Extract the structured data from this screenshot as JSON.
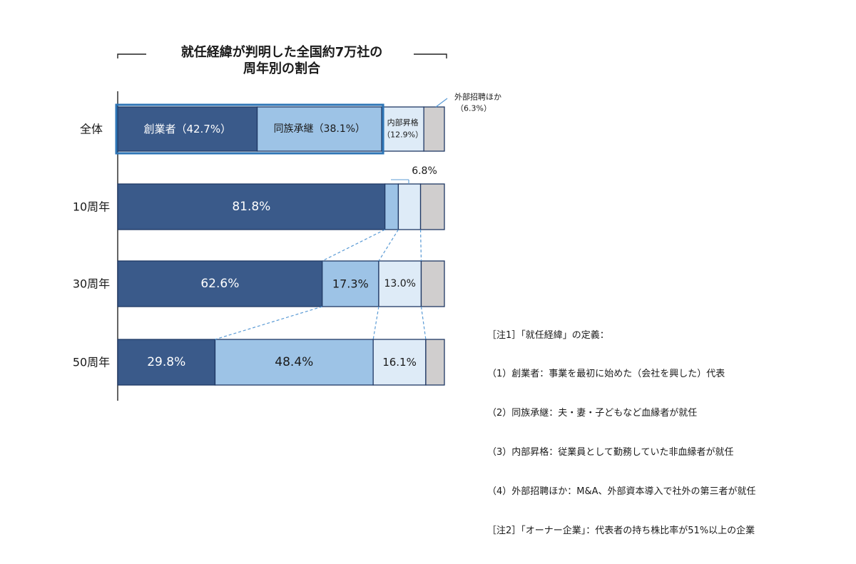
{
  "chart_data": {
    "type": "bar",
    "orientation": "horizontal",
    "stacked": true,
    "normalized": true,
    "title": "就任経緯が判明した全国約7万社の",
    "subtitle": "周年別の割合",
    "categories": [
      "全体",
      "10周年",
      "30周年",
      "50周年"
    ],
    "series": [
      {
        "name": "創業者",
        "color": "#3a5a8a",
        "values": [
          42.7,
          81.8,
          62.6,
          29.8
        ]
      },
      {
        "name": "同族承継",
        "color": "#9dc3e6",
        "values": [
          38.1,
          4.1,
          17.3,
          48.4
        ]
      },
      {
        "name": "内部昇格",
        "color": "#deebf7",
        "values": [
          12.9,
          6.8,
          13.0,
          16.1
        ]
      },
      {
        "name": "外部招聘ほか",
        "color": "#d0cece",
        "values": [
          6.3,
          7.3,
          7.1,
          5.7
        ]
      }
    ],
    "labels": {
      "overall_founder": "創業者（42.7%）",
      "overall_family": "同族承継（38.1%）",
      "overall_internal_1": "内部昇格",
      "overall_internal_2": "（12.9%）",
      "overall_external_1": "外部招聘ほか",
      "overall_external_2": "（6.3%）",
      "y10_founder": "81.8%",
      "y10_internal": "6.8%",
      "y30_founder": "62.6%",
      "y30_family": "17.3%",
      "y30_internal": "13.0%",
      "y50_founder": "29.8%",
      "y50_family": "48.4%",
      "y50_internal": "16.1%"
    },
    "xlim": [
      0,
      100
    ],
    "grid": false,
    "legend": "none",
    "highlight": "全体: 創業者 + 同族承継"
  },
  "notes": [
    "［注1］「就任経緯」の定義：",
    "（1）創業者：事業を最初に始めた（会社を興した）代表",
    "（2）同族承継：夫・妻・子どもなど血縁者が就任",
    "（3）内部昇格：従業員として勤務していた非血縁者が就任",
    "（4）外部招聘ほか：M&A、外部資本導入で社外の第三者が就任",
    "［注2］「オーナー企業」：代表者の持ち株比率が51%以上の企業"
  ]
}
